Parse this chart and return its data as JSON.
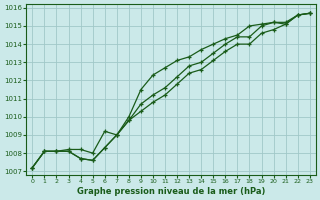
{
  "title": "Graphe pression niveau de la mer (hPa)",
  "background_color": "#cbe9e9",
  "grid_color": "#a0c8c8",
  "line_color": "#1a5c1a",
  "x_labels": [
    "0",
    "1",
    "2",
    "3",
    "4",
    "5",
    "6",
    "7",
    "8",
    "9",
    "10",
    "11",
    "12",
    "13",
    "14",
    "15",
    "16",
    "17",
    "18",
    "19",
    "20",
    "21",
    "22",
    "23"
  ],
  "ylim": [
    1006.8,
    1016.2
  ],
  "yticks": [
    1007,
    1008,
    1009,
    1010,
    1011,
    1012,
    1013,
    1014,
    1015,
    1016
  ],
  "series_max": [
    1007.2,
    1008.1,
    1008.1,
    1008.2,
    1008.2,
    1008.0,
    1009.2,
    1009.0,
    1010.0,
    1011.5,
    1012.3,
    1012.7,
    1013.1,
    1013.3,
    1013.7,
    1014.0,
    1014.3,
    1014.5,
    1015.0,
    1015.1,
    1015.2,
    1015.2,
    1015.6,
    1015.7
  ],
  "series_mid": [
    1007.2,
    1008.1,
    1008.1,
    1008.1,
    1007.7,
    1007.6,
    1008.3,
    1009.0,
    1009.8,
    1010.7,
    1011.2,
    1011.6,
    1012.2,
    1012.8,
    1013.0,
    1013.5,
    1014.0,
    1014.4,
    1014.4,
    1015.0,
    1015.2,
    1015.1,
    1015.6,
    1015.7
  ],
  "series_min": [
    1007.2,
    1008.1,
    1008.1,
    1008.1,
    1007.7,
    1007.6,
    1008.3,
    1009.0,
    1009.8,
    1010.3,
    1010.8,
    1011.2,
    1011.8,
    1012.4,
    1012.6,
    1013.1,
    1013.6,
    1014.0,
    1014.0,
    1014.6,
    1014.8,
    1015.1,
    1015.6,
    1015.7
  ]
}
